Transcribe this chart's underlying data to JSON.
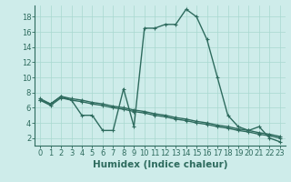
{
  "line1_x": [
    0,
    1,
    2,
    3,
    4,
    5,
    6,
    7,
    8,
    9,
    10,
    11,
    12,
    13,
    14,
    15,
    16,
    17,
    18,
    19,
    20,
    21,
    22,
    23
  ],
  "line1_y": [
    7,
    6.5,
    7.5,
    7,
    5,
    5,
    3,
    3,
    8.5,
    3.5,
    16.5,
    16.5,
    17,
    17,
    19,
    18,
    15,
    10,
    5,
    3.5,
    3,
    3.5,
    2,
    1.5
  ],
  "line2_x": [
    0,
    1,
    2,
    3,
    4,
    5,
    6,
    7,
    8,
    9,
    10,
    11,
    12,
    13,
    14,
    15,
    16,
    17,
    18,
    19,
    20,
    21,
    22,
    23
  ],
  "line2_y": [
    7.0,
    6.3,
    7.3,
    7.0,
    6.8,
    6.5,
    6.3,
    6.0,
    5.8,
    5.5,
    5.3,
    5.0,
    4.8,
    4.5,
    4.3,
    4.0,
    3.8,
    3.5,
    3.3,
    3.0,
    2.8,
    2.5,
    2.3,
    2.0
  ],
  "line3_x": [
    0,
    1,
    2,
    3,
    4,
    5,
    6,
    7,
    8,
    9,
    10,
    11,
    12,
    13,
    14,
    15,
    16,
    17,
    18,
    19,
    20,
    21,
    22,
    23
  ],
  "line3_y": [
    7.2,
    6.5,
    7.5,
    7.2,
    7.0,
    6.7,
    6.5,
    6.2,
    6.0,
    5.7,
    5.5,
    5.2,
    5.0,
    4.7,
    4.5,
    4.2,
    4.0,
    3.7,
    3.5,
    3.2,
    3.0,
    2.7,
    2.5,
    2.2
  ],
  "line_color": "#2e6b5e",
  "bg_color": "#ceecea",
  "grid_color": "#a8d8d0",
  "xlabel": "Humidex (Indice chaleur)",
  "xlim": [
    -0.5,
    23.5
  ],
  "ylim": [
    1,
    19.5
  ],
  "yticks": [
    2,
    4,
    6,
    8,
    10,
    12,
    14,
    16,
    18
  ],
  "xticks": [
    0,
    1,
    2,
    3,
    4,
    5,
    6,
    7,
    8,
    9,
    10,
    11,
    12,
    13,
    14,
    15,
    16,
    17,
    18,
    19,
    20,
    21,
    22,
    23
  ],
  "xtick_labels": [
    "0",
    "1",
    "2",
    "3",
    "4",
    "5",
    "6",
    "7",
    "8",
    "9",
    "10",
    "11",
    "12",
    "13",
    "14",
    "15",
    "16",
    "17",
    "18",
    "19",
    "20",
    "21",
    "22",
    "23"
  ],
  "marker": "+",
  "linewidth": 1.0,
  "marker_size": 3,
  "fontsize_tick": 6,
  "fontsize_label": 7.5
}
